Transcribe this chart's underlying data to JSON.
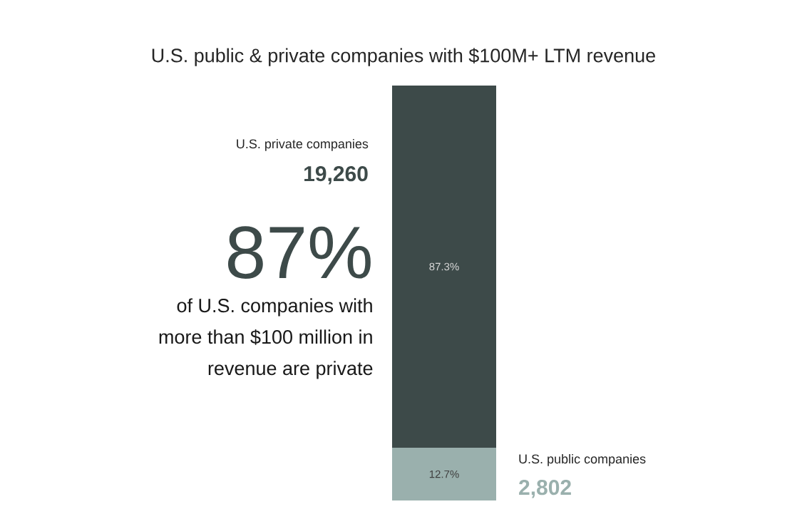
{
  "chart_data": {
    "type": "bar",
    "stacked": true,
    "title": "U.S. public & private companies with $100M+ LTM revenue",
    "categories": [
      null
    ],
    "series": [
      {
        "name": "U.S. public companies",
        "color": "#9ab0ad",
        "values": [
          12.7
        ],
        "value_labels": [
          "12.7%"
        ]
      },
      {
        "name": "U.S. private companies",
        "color": "#3d4a49",
        "values": [
          87.3
        ],
        "value_labels": [
          "87.3%"
        ]
      }
    ],
    "annotations": [
      "2,802",
      "19,260",
      "87%",
      "of U.S. companies with more than $100 million in revenue are private"
    ]
  }
}
